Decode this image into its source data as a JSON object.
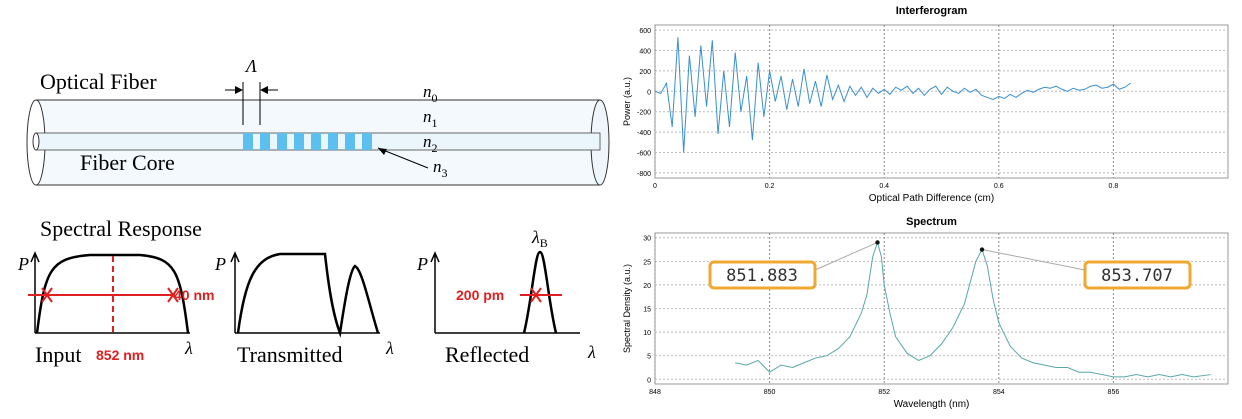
{
  "diagram": {
    "fiber_label": "Optical Fiber",
    "core_label": "Fiber Core",
    "period_label": "Λ",
    "indices": [
      {
        "base": "n",
        "sub": "0"
      },
      {
        "base": "n",
        "sub": "1"
      },
      {
        "base": "n",
        "sub": "2"
      },
      {
        "base": "n",
        "sub": "3"
      }
    ],
    "spectral_title": "Spectral Response",
    "axis_p": [
      "P",
      "P",
      "P"
    ],
    "axis_lambda": [
      "λ",
      "λ",
      "λ"
    ],
    "panels": [
      "Input",
      "Transmitted",
      "Reflected"
    ],
    "input_center": "852 nm",
    "input_width": "40 nm",
    "reflected_width": "200 pm",
    "bragg": {
      "base": "λ",
      "sub": "B"
    }
  },
  "chart_data": [
    {
      "type": "line",
      "title": "Interferogram",
      "x_label": "Optical Path Difference (cm)",
      "y_label": "Power (a.u.)",
      "xlim": [
        0,
        1
      ],
      "ylim": [
        -850,
        650
      ],
      "xticks": [
        0,
        0.2,
        0.4,
        0.6,
        0.8
      ],
      "yticks": [
        -800,
        -600,
        -400,
        -200,
        0,
        200,
        400,
        600
      ],
      "grid": true,
      "x": [
        0,
        0.01,
        0.02,
        0.03,
        0.04,
        0.05,
        0.06,
        0.07,
        0.08,
        0.09,
        0.1,
        0.11,
        0.12,
        0.13,
        0.14,
        0.15,
        0.16,
        0.17,
        0.18,
        0.19,
        0.2,
        0.21,
        0.22,
        0.23,
        0.24,
        0.25,
        0.26,
        0.27,
        0.28,
        0.29,
        0.3,
        0.31,
        0.32,
        0.33,
        0.34,
        0.35,
        0.36,
        0.37,
        0.38,
        0.39,
        0.4,
        0.41,
        0.42,
        0.43,
        0.44,
        0.45,
        0.46,
        0.47,
        0.48,
        0.49,
        0.5,
        0.51,
        0.52,
        0.53,
        0.54,
        0.55,
        0.56,
        0.57,
        0.58,
        0.59,
        0.6,
        0.61,
        0.62,
        0.63,
        0.64,
        0.65,
        0.66,
        0.67,
        0.68,
        0.69,
        0.7,
        0.71,
        0.72,
        0.73,
        0.74,
        0.75,
        0.76,
        0.77,
        0.78,
        0.79,
        0.8,
        0.81,
        0.82,
        0.83
      ],
      "series": [
        {
          "color": "#3a8fd0",
          "values": [
            0,
            -20,
            80,
            -350,
            530,
            -600,
            350,
            -250,
            450,
            -150,
            500,
            -420,
            200,
            -350,
            380,
            -200,
            150,
            -480,
            280,
            -250,
            200,
            -100,
            150,
            -180,
            120,
            -150,
            220,
            -120,
            100,
            -150,
            160,
            -80,
            60,
            -100,
            50,
            -40,
            40,
            -60,
            30,
            -20,
            20,
            -30,
            40,
            10,
            50,
            -20,
            30,
            -40,
            20,
            50,
            -30,
            40,
            0,
            -20,
            30,
            -10,
            20,
            -40,
            -60,
            -80,
            -50,
            -70,
            -30,
            -60,
            -20,
            10,
            -10,
            20,
            40,
            30,
            50,
            20,
            0,
            30,
            10,
            20,
            50,
            60,
            30,
            40,
            70,
            20,
            40,
            80
          ]
        }
      ]
    },
    {
      "type": "line",
      "title": "Spectrum",
      "x_label": "Wavelength (nm)",
      "y_label": "Spectral Density (a.u.)",
      "xlim": [
        848,
        858
      ],
      "ylim": [
        -1,
        31
      ],
      "xticks": [
        848,
        850,
        852,
        854,
        856
      ],
      "yticks": [
        0,
        5,
        10,
        15,
        20,
        25,
        30
      ],
      "grid": true,
      "x": [
        849.4,
        849.6,
        849.8,
        850.0,
        850.2,
        850.4,
        850.6,
        850.8,
        851.0,
        851.2,
        851.4,
        851.6,
        851.7,
        851.8,
        851.883,
        851.95,
        852.0,
        852.1,
        852.2,
        852.4,
        852.6,
        852.8,
        853.0,
        853.2,
        853.4,
        853.6,
        853.707,
        853.8,
        853.9,
        854.0,
        854.2,
        854.4,
        854.6,
        854.8,
        855.0,
        855.2,
        855.4,
        855.6,
        855.8,
        856.0,
        856.2,
        856.4,
        856.6,
        856.8,
        857.0,
        857.2,
        857.4,
        857.7
      ],
      "series": [
        {
          "color": "#5aa7a8",
          "values": [
            3.5,
            3,
            4,
            1.5,
            3,
            2.5,
            3.5,
            4.5,
            5,
            6.5,
            9,
            14,
            18,
            26,
            29,
            26,
            20,
            14,
            9,
            5.5,
            4,
            5,
            7.5,
            11,
            16,
            25,
            27.5,
            24,
            17,
            12,
            7,
            4.5,
            3.5,
            3,
            2.5,
            2.5,
            1.5,
            1.5,
            1,
            0.5,
            0.5,
            1,
            0.5,
            1,
            0.5,
            1,
            0.5,
            1
          ]
        }
      ],
      "annotations": [
        {
          "text": "851.883",
          "x": 851.883,
          "y": 29
        },
        {
          "text": "853.707",
          "x": 853.707,
          "y": 27.5
        }
      ]
    }
  ]
}
